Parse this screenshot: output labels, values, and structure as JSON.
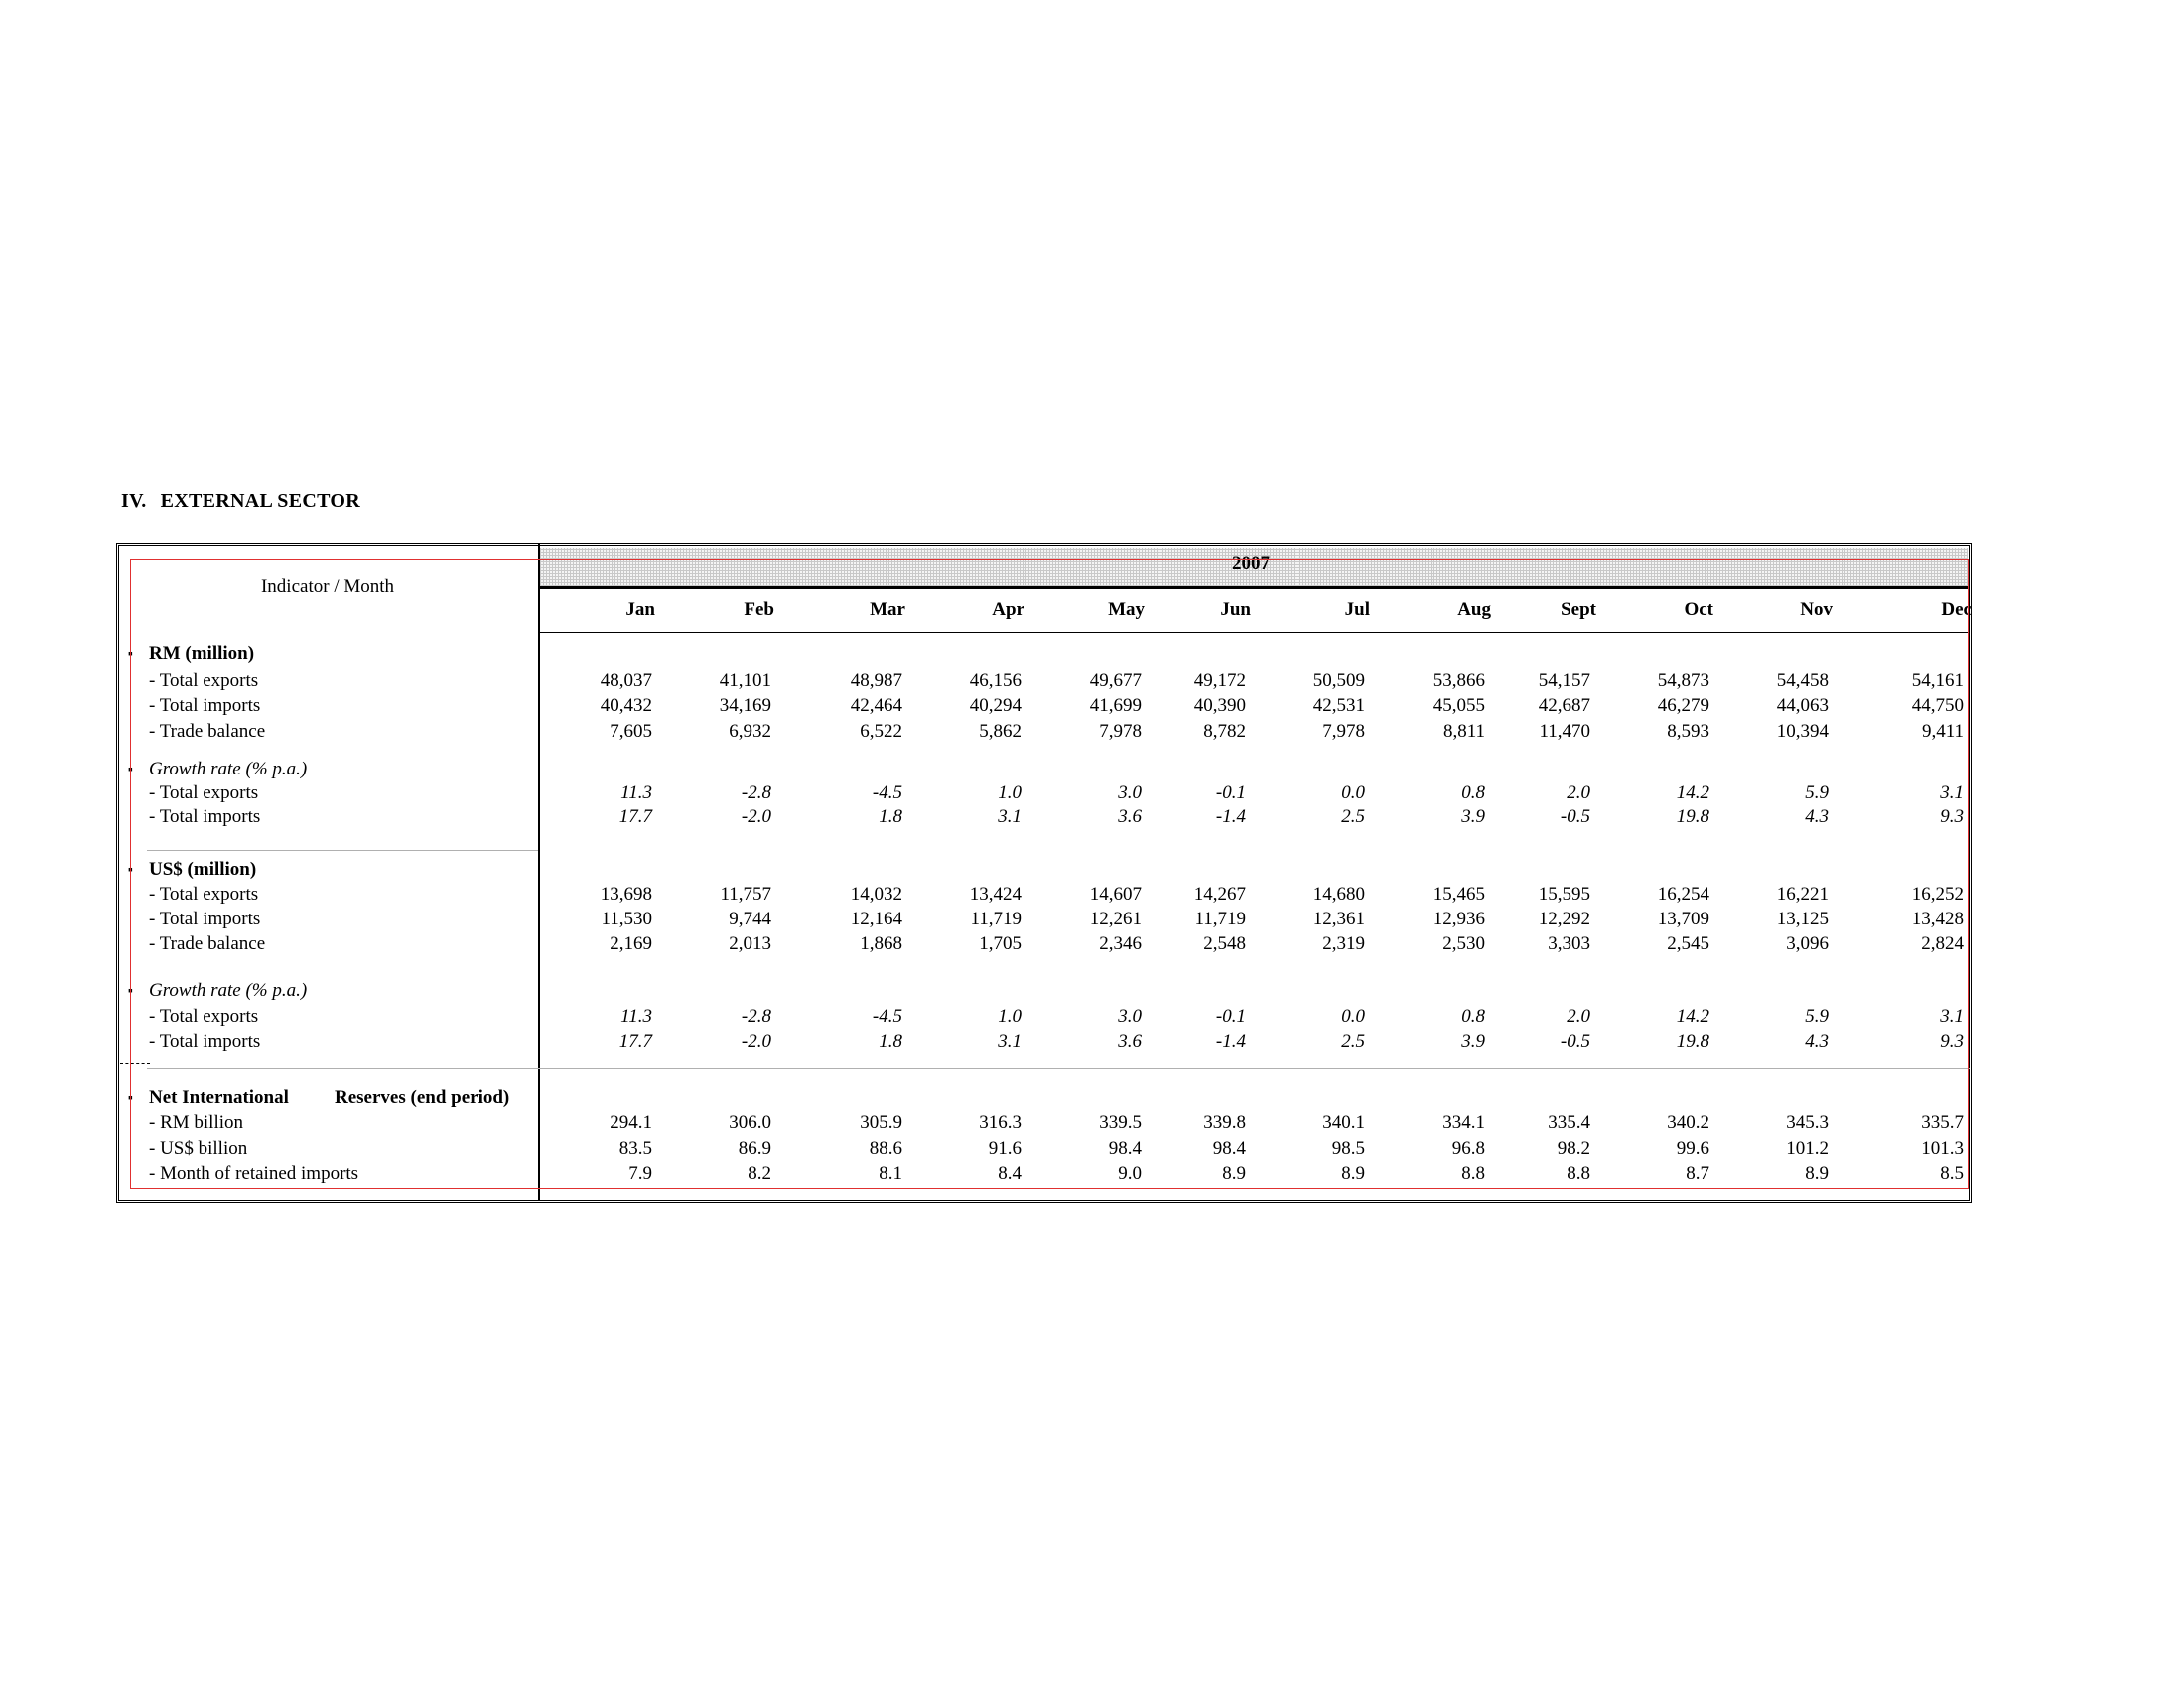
{
  "section": {
    "number": "IV.",
    "title": "EXTERNAL SECTOR"
  },
  "table": {
    "indicator_header": "Indicator / Month",
    "year": "2007",
    "months": [
      "Jan",
      "Feb",
      "Mar",
      "Apr",
      "May",
      "Jun",
      "Jul",
      "Aug",
      "Sept",
      "Oct",
      "Nov",
      "Dec"
    ],
    "groups": [
      {
        "label": "RM (million)",
        "style": "bold",
        "rows": [
          {
            "label": "-  Total exports",
            "style": "normal",
            "values": [
              "48,037",
              "41,101",
              "48,987",
              "46,156",
              "49,677",
              "49,172",
              "50,509",
              "53,866",
              "54,157",
              "54,873",
              "54,458",
              "54,161"
            ]
          },
          {
            "label": "-  Total imports",
            "style": "normal",
            "values": [
              "40,432",
              "34,169",
              "42,464",
              "40,294",
              "41,699",
              "40,390",
              "42,531",
              "45,055",
              "42,687",
              "46,279",
              "44,063",
              "44,750"
            ]
          },
          {
            "label": "-  Trade balance",
            "style": "normal",
            "values": [
              "7,605",
              "6,932",
              "6,522",
              "5,862",
              "7,978",
              "8,782",
              "7,978",
              "8,811",
              "11,470",
              "8,593",
              "10,394",
              "9,411"
            ]
          }
        ]
      },
      {
        "label": "Growth rate (% p.a.)",
        "style": "italic",
        "rows": [
          {
            "label": "-  Total exports",
            "style": "italic",
            "values": [
              "11.3",
              "-2.8",
              "-4.5",
              "1.0",
              "3.0",
              "-0.1",
              "0.0",
              "0.8",
              "2.0",
              "14.2",
              "5.9",
              "3.1"
            ]
          },
          {
            "label": "-  Total imports",
            "style": "italic",
            "values": [
              "17.7",
              "-2.0",
              "1.8",
              "3.1",
              "3.6",
              "-1.4",
              "2.5",
              "3.9",
              "-0.5",
              "19.8",
              "4.3",
              "9.3"
            ]
          }
        ]
      },
      {
        "label": "US$ (million)",
        "style": "bold",
        "rows": [
          {
            "label": "-  Total exports",
            "style": "normal",
            "values": [
              "13,698",
              "11,757",
              "14,032",
              "13,424",
              "14,607",
              "14,267",
              "14,680",
              "15,465",
              "15,595",
              "16,254",
              "16,221",
              "16,252"
            ]
          },
          {
            "label": "-  Total imports",
            "style": "normal",
            "values": [
              "11,530",
              "9,744",
              "12,164",
              "11,719",
              "12,261",
              "11,719",
              "12,361",
              "12,936",
              "12,292",
              "13,709",
              "13,125",
              "13,428"
            ]
          },
          {
            "label": "-  Trade balance",
            "style": "normal",
            "values": [
              "2,169",
              "2,013",
              "1,868",
              "1,705",
              "2,346",
              "2,548",
              "2,319",
              "2,530",
              "3,303",
              "2,545",
              "3,096",
              "2,824"
            ]
          }
        ]
      },
      {
        "label": "Growth rate (% p.a.)",
        "style": "italic",
        "rows": [
          {
            "label": "-  Total exports",
            "style": "italic",
            "values": [
              "11.3",
              "-2.8",
              "-4.5",
              "1.0",
              "3.0",
              "-0.1",
              "0.0",
              "0.8",
              "2.0",
              "14.2",
              "5.9",
              "3.1"
            ]
          },
          {
            "label": "-  Total imports",
            "style": "italic",
            "values": [
              "17.7",
              "-2.0",
              "1.8",
              "3.1",
              "3.6",
              "-1.4",
              "2.5",
              "3.9",
              "-0.5",
              "19.8",
              "4.3",
              "9.3"
            ]
          }
        ]
      },
      {
        "label": "Net International",
        "label_b": "Reserves (end period)",
        "style": "bold",
        "rows": [
          {
            "label": "-  RM billion",
            "style": "normal",
            "values": [
              "294.1",
              "306.0",
              "305.9",
              "316.3",
              "339.5",
              "339.8",
              "340.1",
              "334.1",
              "335.4",
              "340.2",
              "345.3",
              "335.7"
            ]
          },
          {
            "label": "-  US$ billion",
            "style": "normal",
            "values": [
              "83.5",
              "86.9",
              "88.6",
              "91.6",
              "98.4",
              "98.4",
              "98.5",
              "96.8",
              "98.2",
              "99.6",
              "101.2",
              "101.3"
            ]
          },
          {
            "label": "- Month of retained imports",
            "style": "normal",
            "values": [
              "7.9",
              "8.2",
              "8.1",
              "8.4",
              "9.0",
              "8.9",
              "8.9",
              "8.8",
              "8.8",
              "8.7",
              "8.9",
              "8.5"
            ]
          }
        ]
      }
    ]
  }
}
